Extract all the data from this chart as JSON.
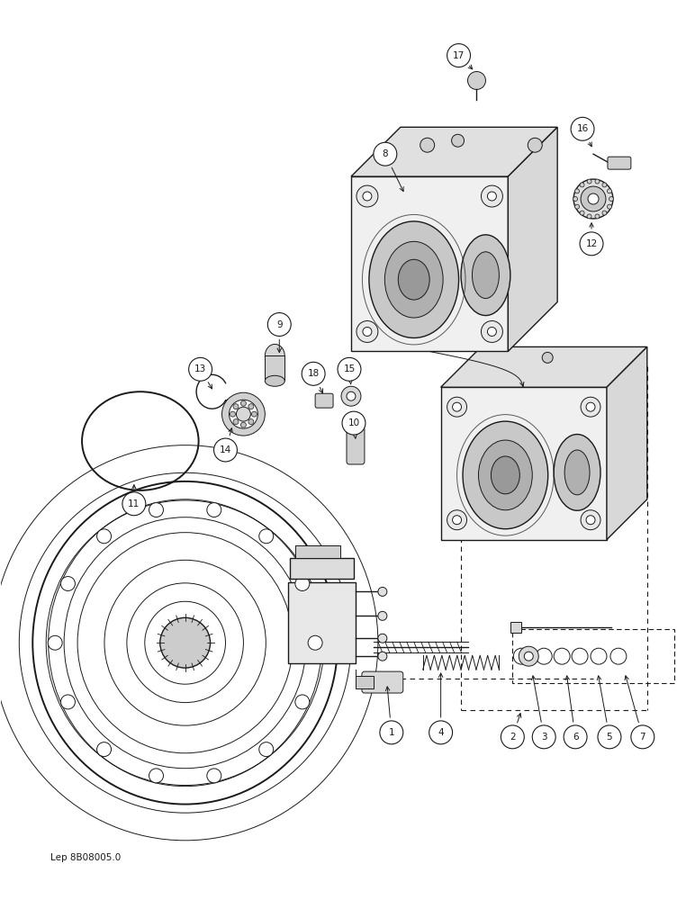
{
  "background_color": "#ffffff",
  "line_color": "#1a1a1a",
  "footer_text": "Lep 8B08005.0",
  "fig_width": 7.72,
  "fig_height": 10.0,
  "dpi": 100
}
